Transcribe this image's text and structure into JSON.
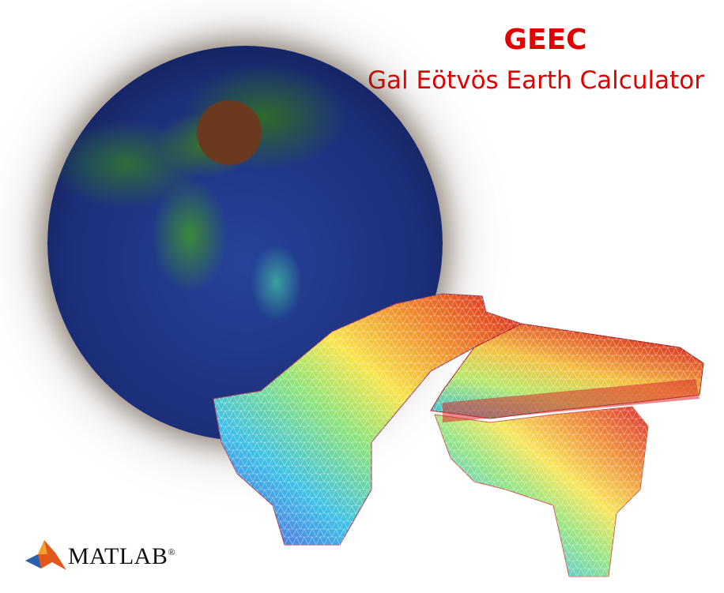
{
  "header": {
    "title": "GEEC",
    "subtitle": "Gal Eötvös Earth Calculator"
  },
  "logo": {
    "text": "MATLAB",
    "trademark": "®",
    "icon": "matlab-membrane-icon"
  },
  "colors": {
    "title": "#e00000",
    "ocean": "#1c2f7a",
    "land": "#2f6a2a"
  },
  "illustrations": {
    "globe": "earth-globe-asia",
    "mesh": "3d-triangulated-surface-model"
  }
}
